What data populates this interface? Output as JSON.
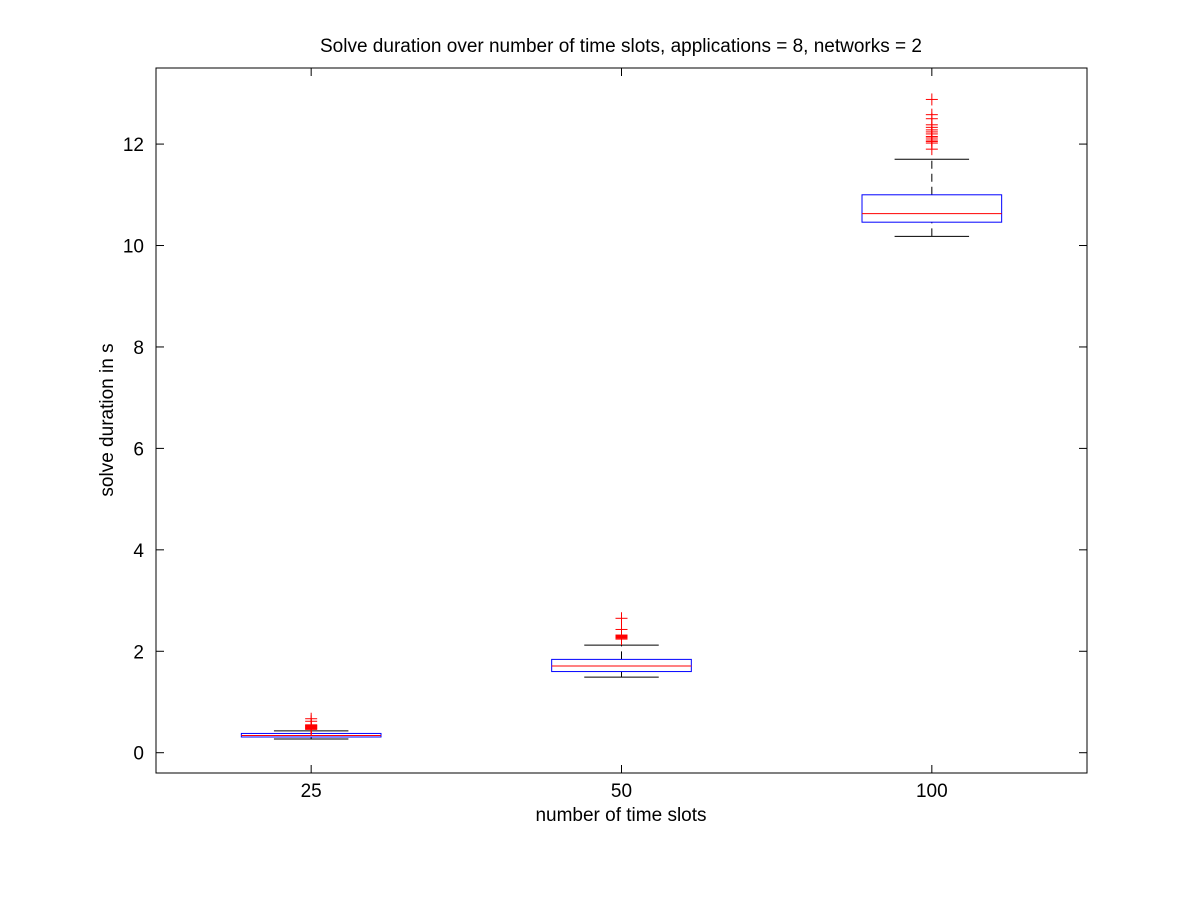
{
  "chart_data": {
    "type": "box",
    "title": "Solve duration over number of time slots, applications = 8, networks = 2",
    "xlabel": "number of time slots",
    "ylabel": "solve duration in s",
    "categories": [
      "25",
      "50",
      "100"
    ],
    "ylim": [
      -0.4,
      13.5
    ],
    "yticks": [
      0,
      2,
      4,
      6,
      8,
      10,
      12
    ],
    "grid": false,
    "boxes": [
      {
        "category": "25",
        "whisker_low": 0.27,
        "q1": 0.31,
        "median": 0.34,
        "q3": 0.38,
        "whisker_high": 0.43,
        "outliers": [
          0.46,
          0.47,
          0.48,
          0.49,
          0.5,
          0.51,
          0.52,
          0.53,
          0.54,
          0.55,
          0.62,
          0.67
        ]
      },
      {
        "category": "50",
        "whisker_low": 1.49,
        "q1": 1.6,
        "median": 1.71,
        "q3": 1.84,
        "whisker_high": 2.12,
        "outliers": [
          2.24,
          2.26,
          2.27,
          2.28,
          2.29,
          2.3,
          2.31,
          2.32,
          2.43,
          2.65
        ]
      },
      {
        "category": "100",
        "whisker_low": 10.18,
        "q1": 10.46,
        "median": 10.63,
        "q3": 11.0,
        "whisker_high": 11.7,
        "outliers": [
          11.9,
          12.02,
          12.05,
          12.08,
          12.12,
          12.15,
          12.2,
          12.24,
          12.28,
          12.33,
          12.38,
          12.5,
          12.58,
          12.88
        ]
      }
    ],
    "colors": {
      "box": "#0000ff",
      "median": "#ff0000",
      "whisker": "#000000",
      "outlier": "#ff0000",
      "axes": "#000000"
    }
  }
}
